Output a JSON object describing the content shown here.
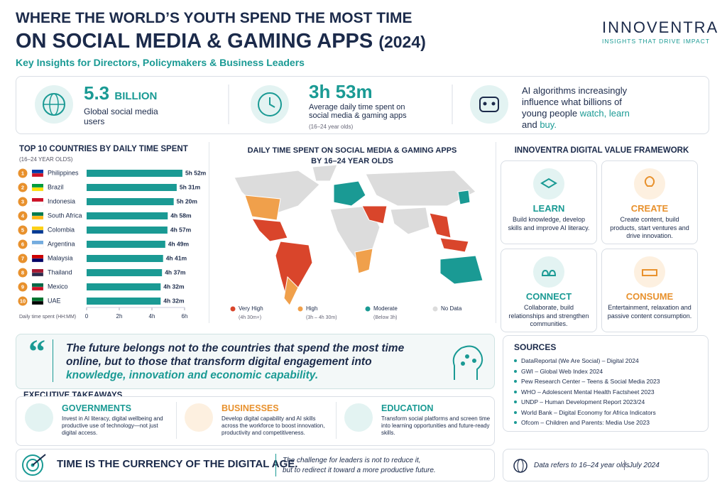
{
  "header": {
    "title_line1": "WHERE THE WORLD’S YOUTH SPEND THE MOST TIME",
    "title_line2": "ON SOCIAL MEDIA & GAMING APPS",
    "title_year": "(2024)",
    "subtitle": "Key Insights for Directors, Policymakers & Business Leaders"
  },
  "logo": {
    "name": "INNOVENTRA",
    "tagline": "INSIGHTS THAT DRIVE IMPACT"
  },
  "stats": [
    {
      "value": "5.3",
      "unit": "BILLION",
      "label": "Global social media users"
    },
    {
      "value": "3h 53m",
      "label": "Average daily time spent on social media & gaming apps",
      "note": "(16–24 year olds)"
    },
    {
      "text": "AI algorithms increasingly influence what billions of young people",
      "highlight1": "watch,",
      "highlight2": "learn",
      "joiner": "and",
      "highlight3": "buy."
    }
  ],
  "chart_data": {
    "type": "bar",
    "orientation": "horizontal",
    "title": "TOP 10 COUNTRIES BY DAILY TIME SPENT",
    "subtitle": "(16–24 YEAR OLDS)",
    "ranks": [
      1,
      2,
      3,
      4,
      5,
      6,
      7,
      8,
      9,
      10
    ],
    "categories": [
      "Philippines",
      "Brazil",
      "Indonesia",
      "South Africa",
      "Colombia",
      "Argentina",
      "Malaysia",
      "Thailand",
      "Mexico",
      "UAE"
    ],
    "values": [
      5.867,
      5.517,
      5.333,
      4.967,
      4.95,
      4.817,
      4.683,
      4.617,
      4.533,
      4.533
    ],
    "value_labels": [
      "5h 52m",
      "5h 31m",
      "5h 20m",
      "4h 58m",
      "4h 57m",
      "4h 49m",
      "4h 41m",
      "4h 37m",
      "4h 32m",
      "4h 32m"
    ],
    "color": "#1a9a94",
    "xlim": [
      0,
      6
    ],
    "xticks": [
      0,
      {
        "value": 2,
        "label": "2h"
      },
      {
        "value": 4,
        "label": "4h"
      },
      {
        "value": 6,
        "label": "6h"
      }
    ],
    "xlabel": "Daily time spent (HH:MM)"
  },
  "map": {
    "title": "DAILY TIME SPENT ON SOCIAL MEDIA & GAMING APPS",
    "subtitle": "BY 16–24 YEAR OLDS",
    "legend": [
      {
        "name": "Very High",
        "range": "(4h 30m+)",
        "color": "#d9452b"
      },
      {
        "name": "High",
        "range": "(3h – 4h 30m)",
        "color": "#f0a04b"
      },
      {
        "name": "Moderate",
        "range": "(Below 3h)",
        "color": "#1a9a94"
      },
      {
        "name": "No Data",
        "color": "#dcdcdc"
      }
    ]
  },
  "framework": {
    "title": "INNOVENTRA DIGITAL VALUE FRAMEWORK",
    "cards": [
      {
        "title": "LEARN",
        "text": "Build knowledge, develop skills and improve AI literacy.",
        "color": "#1a9a94"
      },
      {
        "title": "CREATE",
        "text": "Create content, build products, start ventures and drive innovation.",
        "color": "#e8912d"
      },
      {
        "title": "CONNECT",
        "text": "Collaborate, build relationships and strengthen communities.",
        "color": "#1a9a94"
      },
      {
        "title": "CONSUME",
        "text": "Entertainment, relaxation and passive content consumption.",
        "color": "#e8912d"
      }
    ]
  },
  "quote": {
    "text": "The future belongs not to the countries that spend the most time online, but to those that transform digital engagement into",
    "highlight": "knowledge, innovation and economic capability."
  },
  "takeaways": {
    "title": "EXECUTIVE TAKEAWAYS",
    "items": [
      {
        "title": "GOVERNMENTS",
        "text": "Invest in AI literacy, digital wellbeing and productive use of technology—not just digital access.",
        "color": "#1a9a94"
      },
      {
        "title": "BUSINESSES",
        "text": "Develop digital capability and AI skills across the workforce to boost innovation, productivity and competitiveness.",
        "color": "#e8912d"
      },
      {
        "title": "EDUCATION",
        "text": "Transform social platforms and screen time into learning opportunities and future-ready skills.",
        "color": "#1a9a94"
      }
    ]
  },
  "sources": {
    "title": "SOURCES",
    "items": [
      "DataReportal (We Are Social) – Digital 2024",
      "GWI – Global Web Index 2024",
      "Pew Research Center – Teens & Social Media 2023",
      "WHO – Adolescent Mental Health Factsheet 2023",
      "UNDP – Human Development Report 2023/24",
      "World Bank – Digital Economy for Africa Indicators",
      "Ofcom – Children and Parents: Media Use 2023"
    ]
  },
  "footer": {
    "headline": "TIME IS THE CURRENCY OF THE DIGITAL AGE.",
    "note1": "The challenge for leaders is not to reduce it,",
    "note2": "but to redirect it toward a more productive future.",
    "data_note": "Data refers to 16–24 year olds",
    "date": "July 2024"
  }
}
